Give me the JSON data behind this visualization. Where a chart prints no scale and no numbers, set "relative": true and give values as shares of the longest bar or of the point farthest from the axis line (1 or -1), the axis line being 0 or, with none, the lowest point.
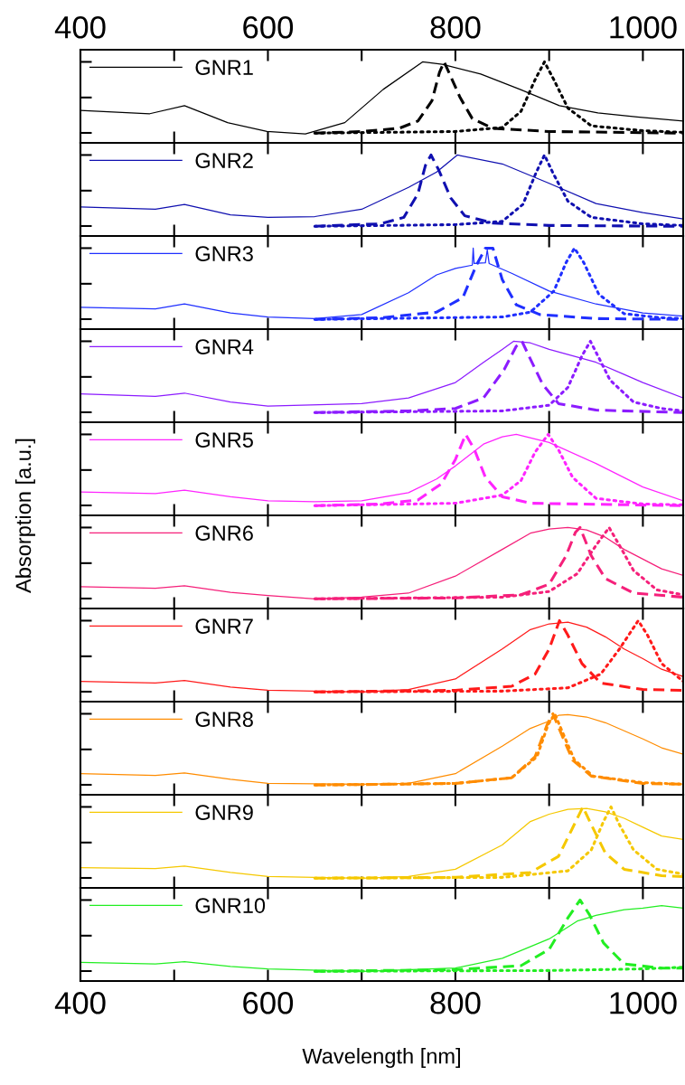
{
  "chart_data": [
    {
      "type": "line",
      "relative": true,
      "xlim": [
        400,
        1043
      ],
      "xticks": [
        400,
        {
          "value": 500,
          "label": null
        },
        600,
        {
          "value": 700,
          "label": null
        },
        800,
        {
          "value": 900,
          "label": null
        },
        1000
      ],
      "x2lim": [
        400,
        1043
      ],
      "x2ticks": [
        400,
        {
          "value": 500,
          "label": null
        },
        600,
        {
          "value": 700,
          "label": null
        },
        800,
        {
          "value": 900,
          "label": null
        },
        1000
      ],
      "tick_labels": false,
      "legend": "top left",
      "marker": "none",
      "series": [
        {
          "name": "GNR1",
          "color": "#000000",
          "line_style": "solid",
          "x": [
            400,
            474,
            511,
            557,
            599,
            640,
            682,
            723,
            765,
            786,
            827,
            869,
            911,
            952,
            994,
            1043
          ],
          "values": [
            0.4,
            0.36,
            0.46,
            0.25,
            0.14,
            0.11,
            0.25,
            0.66,
            1.0,
            0.97,
            0.85,
            0.66,
            0.46,
            0.37,
            0.32,
            0.27
          ]
        },
        {
          "color": "#000000",
          "line_style": "dashed",
          "x": [
            650,
            700,
            740,
            760,
            775,
            783,
            788,
            795,
            805,
            818,
            840,
            900,
            1043
          ],
          "values": [
            0.12,
            0.14,
            0.18,
            0.27,
            0.52,
            0.87,
            1.0,
            0.82,
            0.56,
            0.3,
            0.18,
            0.14,
            0.12
          ]
        },
        {
          "color": "#000000",
          "line_style": "dotted",
          "x": [
            650,
            800,
            850,
            870,
            885,
            895,
            905,
            920,
            945,
            1000,
            1043
          ],
          "values": [
            0.12,
            0.14,
            0.19,
            0.39,
            0.78,
            1.0,
            0.78,
            0.43,
            0.21,
            0.15,
            0.13
          ]
        }
      ]
    },
    {
      "type": "line",
      "relative": true,
      "xlim": [
        400,
        1043
      ],
      "xticks": [
        400,
        {
          "value": 500,
          "label": null
        },
        600,
        {
          "value": 700,
          "label": null
        },
        800,
        {
          "value": 900,
          "label": null
        },
        1000
      ],
      "tick_labels": false,
      "legend": "top left",
      "marker": "none",
      "series": [
        {
          "name": "GNR2",
          "color": "#1010b0",
          "line_style": "solid",
          "x": [
            400,
            480,
            511,
            560,
            600,
            650,
            700,
            750,
            780,
            802,
            850,
            900,
            950,
            1000,
            1043
          ],
          "values": [
            0.36,
            0.33,
            0.39,
            0.26,
            0.23,
            0.24,
            0.33,
            0.6,
            0.79,
            1.0,
            0.89,
            0.65,
            0.4,
            0.29,
            0.21
          ]
        },
        {
          "color": "#1010b0",
          "line_style": "dashed",
          "x": [
            650,
            720,
            745,
            760,
            768,
            774,
            782,
            795,
            810,
            840,
            900,
            1043
          ],
          "values": [
            0.12,
            0.15,
            0.23,
            0.52,
            0.87,
            1.0,
            0.82,
            0.47,
            0.25,
            0.16,
            0.13,
            0.12
          ]
        },
        {
          "color": "#1010b0",
          "line_style": "dotted",
          "x": [
            650,
            800,
            850,
            872,
            886,
            895,
            904,
            920,
            945,
            1000,
            1043
          ],
          "values": [
            0.12,
            0.14,
            0.18,
            0.39,
            0.78,
            1.0,
            0.78,
            0.43,
            0.23,
            0.15,
            0.13
          ]
        }
      ]
    },
    {
      "type": "line",
      "relative": true,
      "xlim": [
        400,
        1043
      ],
      "xticks": [
        400,
        {
          "value": 500,
          "label": null
        },
        600,
        {
          "value": 700,
          "label": null
        },
        800,
        {
          "value": 900,
          "label": null
        },
        1000
      ],
      "tick_labels": false,
      "legend": "top left",
      "marker": "none",
      "series": [
        {
          "name": "GNR3",
          "color": "#1f2fff",
          "line_style": "solid",
          "x": [
            400,
            480,
            511,
            560,
            600,
            650,
            700,
            750,
            780,
            800,
            818,
            819,
            820,
            832,
            834,
            836,
            840,
            860,
            900,
            950,
            1000,
            1043
          ],
          "values": [
            0.27,
            0.25,
            0.31,
            0.2,
            0.15,
            0.13,
            0.18,
            0.45,
            0.67,
            0.75,
            0.79,
            1.0,
            0.81,
            0.82,
            0.98,
            0.81,
            0.79,
            0.69,
            0.47,
            0.31,
            0.2,
            0.16
          ]
        },
        {
          "color": "#1f2fff",
          "line_style": "dashed",
          "x": [
            650,
            720,
            780,
            808,
            822,
            832,
            840,
            850,
            865,
            890,
            950,
            1043
          ],
          "values": [
            0.12,
            0.14,
            0.21,
            0.39,
            0.78,
            1.0,
            1.0,
            0.61,
            0.3,
            0.18,
            0.13,
            0.12
          ]
        },
        {
          "color": "#1f2fff",
          "line_style": "dotted",
          "x": [
            650,
            850,
            880,
            905,
            918,
            927,
            937,
            953,
            980,
            1020,
            1043
          ],
          "values": [
            0.12,
            0.15,
            0.21,
            0.47,
            0.82,
            1.0,
            0.82,
            0.43,
            0.19,
            0.14,
            0.13
          ]
        }
      ]
    },
    {
      "type": "line",
      "relative": true,
      "xlim": [
        400,
        1043
      ],
      "xticks": [
        400,
        {
          "value": 500,
          "label": null
        },
        600,
        {
          "value": 700,
          "label": null
        },
        800,
        {
          "value": 900,
          "label": null
        },
        1000
      ],
      "tick_labels": false,
      "legend": "top left",
      "marker": "none",
      "series": [
        {
          "name": "GNR4",
          "color": "#8c1cff",
          "line_style": "solid",
          "x": [
            400,
            480,
            511,
            560,
            600,
            700,
            750,
            800,
            830,
            850,
            862,
            880,
            900,
            950,
            980,
            1000,
            1043
          ],
          "values": [
            0.35,
            0.32,
            0.36,
            0.25,
            0.2,
            0.23,
            0.3,
            0.49,
            0.74,
            0.9,
            1.0,
            0.98,
            0.9,
            0.74,
            0.59,
            0.49,
            0.3
          ]
        },
        {
          "color": "#8c1cff",
          "line_style": "dashed",
          "x": [
            650,
            750,
            800,
            830,
            852,
            865,
            871,
            880,
            893,
            910,
            950,
            1043
          ],
          "values": [
            0.12,
            0.14,
            0.17,
            0.3,
            0.65,
            0.94,
            1.0,
            0.78,
            0.47,
            0.23,
            0.15,
            0.12
          ]
        },
        {
          "color": "#8c1cff",
          "line_style": "dotted",
          "x": [
            650,
            850,
            900,
            920,
            935,
            944,
            952,
            965,
            990,
            1020,
            1043
          ],
          "values": [
            0.12,
            0.14,
            0.21,
            0.43,
            0.82,
            1.0,
            0.82,
            0.52,
            0.25,
            0.17,
            0.14
          ]
        }
      ]
    },
    {
      "type": "line",
      "relative": true,
      "xlim": [
        400,
        1043
      ],
      "xticks": [
        400,
        {
          "value": 500,
          "label": null
        },
        600,
        {
          "value": 700,
          "label": null
        },
        800,
        {
          "value": 900,
          "label": null
        },
        1000
      ],
      "tick_labels": false,
      "legend": "top left",
      "marker": "none",
      "ylabel": "Absorption [a.u.]",
      "series": [
        {
          "name": "GNR5",
          "color": "#ff24ff",
          "line_style": "solid",
          "x": [
            400,
            480,
            511,
            560,
            600,
            650,
            700,
            750,
            780,
            800,
            830,
            850,
            865,
            900,
            950,
            1000,
            1043
          ],
          "values": [
            0.29,
            0.27,
            0.31,
            0.23,
            0.18,
            0.17,
            0.18,
            0.28,
            0.45,
            0.61,
            0.88,
            0.97,
            1.0,
            0.9,
            0.64,
            0.35,
            0.18
          ]
        },
        {
          "color": "#ff24ff",
          "line_style": "dashed",
          "x": [
            650,
            720,
            760,
            785,
            800,
            811,
            820,
            832,
            850,
            880,
            1043
          ],
          "values": [
            0.12,
            0.14,
            0.19,
            0.39,
            0.69,
            1.0,
            0.82,
            0.47,
            0.23,
            0.15,
            0.12
          ]
        },
        {
          "color": "#ff24ff",
          "line_style": "dotted",
          "x": [
            650,
            800,
            850,
            870,
            885,
            899,
            910,
            925,
            950,
            1000,
            1043
          ],
          "values": [
            0.12,
            0.15,
            0.25,
            0.43,
            0.78,
            1.0,
            0.81,
            0.47,
            0.21,
            0.14,
            0.13
          ]
        }
      ]
    },
    {
      "type": "line",
      "relative": true,
      "xlim": [
        400,
        1043
      ],
      "xticks": [
        400,
        {
          "value": 500,
          "label": null
        },
        600,
        {
          "value": 700,
          "label": null
        },
        800,
        {
          "value": 900,
          "label": null
        },
        1000
      ],
      "tick_labels": false,
      "legend": "top left",
      "marker": "none",
      "series": [
        {
          "name": "GNR6",
          "color": "#f5207a",
          "line_style": "solid",
          "x": [
            400,
            480,
            511,
            560,
            600,
            650,
            700,
            750,
            800,
            850,
            880,
            900,
            920,
            940,
            960,
            980,
            1000,
            1020,
            1043
          ],
          "values": [
            0.27,
            0.25,
            0.28,
            0.2,
            0.16,
            0.12,
            0.14,
            0.19,
            0.4,
            0.73,
            0.93,
            0.98,
            1.0,
            0.97,
            0.88,
            0.73,
            0.61,
            0.49,
            0.41
          ]
        },
        {
          "color": "#f5207a",
          "line_style": "dashed",
          "x": [
            650,
            800,
            870,
            900,
            918,
            928,
            933,
            945,
            960,
            990,
            1043
          ],
          "values": [
            0.12,
            0.13,
            0.17,
            0.3,
            0.65,
            0.94,
            1.0,
            0.65,
            0.37,
            0.19,
            0.14
          ]
        },
        {
          "color": "#f5207a",
          "line_style": "dotted",
          "x": [
            650,
            850,
            900,
            930,
            950,
            964,
            975,
            990,
            1015,
            1043
          ],
          "values": [
            0.12,
            0.14,
            0.21,
            0.43,
            0.78,
            1.0,
            0.78,
            0.47,
            0.23,
            0.17
          ]
        }
      ]
    },
    {
      "type": "line",
      "relative": true,
      "xlim": [
        400,
        1043
      ],
      "xticks": [
        400,
        {
          "value": 500,
          "label": null
        },
        600,
        {
          "value": 700,
          "label": null
        },
        800,
        {
          "value": 900,
          "label": null
        },
        1000
      ],
      "tick_labels": false,
      "legend": "top left",
      "marker": "none",
      "series": [
        {
          "name": "GNR7",
          "color": "#ff1a1a",
          "line_style": "solid",
          "x": [
            400,
            480,
            511,
            560,
            600,
            700,
            750,
            800,
            850,
            880,
            900,
            920,
            940,
            960,
            980,
            1000,
            1020,
            1043
          ],
          "values": [
            0.25,
            0.23,
            0.26,
            0.18,
            0.14,
            0.12,
            0.15,
            0.28,
            0.65,
            0.89,
            0.96,
            0.98,
            0.92,
            0.8,
            0.65,
            0.53,
            0.4,
            0.31
          ]
        },
        {
          "color": "#ff1a1a",
          "line_style": "dashed",
          "x": [
            650,
            800,
            860,
            885,
            900,
            911,
            920,
            935,
            955,
            1000,
            1043
          ],
          "values": [
            0.12,
            0.14,
            0.19,
            0.34,
            0.65,
            1.0,
            0.82,
            0.47,
            0.23,
            0.15,
            0.14
          ]
        },
        {
          "color": "#ff1a1a",
          "line_style": "dotted",
          "x": [
            650,
            850,
            920,
            955,
            975,
            995,
            1005,
            1020,
            1043
          ],
          "values": [
            0.12,
            0.13,
            0.17,
            0.34,
            0.65,
            1.0,
            0.82,
            0.47,
            0.25
          ]
        }
      ]
    },
    {
      "type": "line",
      "relative": true,
      "xlim": [
        400,
        1043
      ],
      "xticks": [
        400,
        {
          "value": 500,
          "label": null
        },
        600,
        {
          "value": 700,
          "label": null
        },
        800,
        {
          "value": 900,
          "label": null
        },
        1000
      ],
      "tick_labels": false,
      "legend": "top left",
      "marker": "none",
      "series": [
        {
          "name": "GNR8",
          "color": "#ff8c00",
          "line_style": "solid",
          "x": [
            400,
            480,
            511,
            560,
            600,
            700,
            750,
            800,
            850,
            880,
            900,
            910,
            920,
            940,
            960,
            980,
            1000,
            1020,
            1043
          ],
          "values": [
            0.26,
            0.24,
            0.27,
            0.19,
            0.14,
            0.13,
            0.14,
            0.26,
            0.6,
            0.82,
            0.91,
            0.98,
            0.99,
            0.96,
            0.89,
            0.79,
            0.69,
            0.58,
            0.5
          ]
        },
        {
          "color": "#ff8c00",
          "line_style": "dashed",
          "x": [
            650,
            800,
            860,
            885,
            898,
            904,
            912,
            925,
            945,
            1000,
            1043
          ],
          "values": [
            0.12,
            0.14,
            0.21,
            0.47,
            0.87,
            1.0,
            0.78,
            0.43,
            0.23,
            0.14,
            0.13
          ]
        },
        {
          "color": "#ff8c00",
          "line_style": "dotted",
          "x": [
            650,
            800,
            860,
            887,
            899,
            906,
            914,
            927,
            947,
            1000,
            1043
          ],
          "values": [
            0.12,
            0.14,
            0.21,
            0.47,
            0.87,
            1.0,
            0.78,
            0.43,
            0.23,
            0.15,
            0.13
          ]
        }
      ]
    },
    {
      "type": "line",
      "relative": true,
      "xlim": [
        400,
        1043
      ],
      "xticks": [
        400,
        {
          "value": 500,
          "label": null
        },
        600,
        {
          "value": 700,
          "label": null
        },
        800,
        {
          "value": 900,
          "label": null
        },
        1000
      ],
      "tick_labels": false,
      "legend": "top left",
      "marker": "none",
      "series": [
        {
          "name": "GNR9",
          "color": "#f5c800",
          "line_style": "solid",
          "x": [
            400,
            480,
            511,
            560,
            600,
            700,
            750,
            800,
            850,
            880,
            900,
            920,
            940,
            960,
            980,
            1000,
            1020,
            1043
          ],
          "values": [
            0.25,
            0.24,
            0.27,
            0.19,
            0.14,
            0.12,
            0.14,
            0.23,
            0.53,
            0.82,
            0.91,
            0.97,
            0.98,
            0.94,
            0.86,
            0.75,
            0.64,
            0.6
          ]
        },
        {
          "color": "#f5c800",
          "line_style": "dashed",
          "x": [
            650,
            800,
            880,
            910,
            925,
            936,
            945,
            960,
            980,
            1020,
            1043
          ],
          "values": [
            0.12,
            0.13,
            0.19,
            0.39,
            0.74,
            1.0,
            0.78,
            0.43,
            0.23,
            0.15,
            0.14
          ]
        },
        {
          "color": "#f5c800",
          "line_style": "dotted",
          "x": [
            650,
            850,
            920,
            945,
            958,
            966,
            975,
            990,
            1015,
            1043
          ],
          "values": [
            0.12,
            0.13,
            0.21,
            0.47,
            0.82,
            1.0,
            0.78,
            0.47,
            0.23,
            0.17
          ]
        }
      ]
    },
    {
      "type": "line",
      "relative": true,
      "xlabel": "Wavelength [nm]",
      "xlim": [
        400,
        1043
      ],
      "xticks": [
        400,
        {
          "value": 500,
          "label": null
        },
        600,
        {
          "value": 700,
          "label": null
        },
        800,
        {
          "value": 900,
          "label": null
        },
        1000
      ],
      "tick_labels": "x",
      "legend": "top left",
      "marker": "none",
      "series": [
        {
          "name": "GNR10",
          "color": "#22ee22",
          "line_style": "solid",
          "x": [
            400,
            480,
            511,
            560,
            600,
            700,
            800,
            850,
            900,
            930,
            950,
            980,
            1000,
            1020,
            1043
          ],
          "values": [
            0.23,
            0.21,
            0.24,
            0.18,
            0.15,
            0.12,
            0.16,
            0.28,
            0.52,
            0.74,
            0.81,
            0.88,
            0.9,
            0.93,
            0.9
          ]
        },
        {
          "color": "#22ee22",
          "line_style": "dashed",
          "x": [
            650,
            800,
            870,
            900,
            920,
            933,
            943,
            958,
            980,
            1020,
            1043
          ],
          "values": [
            0.12,
            0.14,
            0.19,
            0.39,
            0.78,
            1.0,
            0.82,
            0.47,
            0.21,
            0.16,
            0.16
          ]
        },
        {
          "color": "#22ee22",
          "line_style": "dotted",
          "x": [
            650,
            900,
            1000,
            1043
          ],
          "values": [
            0.12,
            0.13,
            0.15,
            0.17
          ]
        }
      ]
    }
  ]
}
